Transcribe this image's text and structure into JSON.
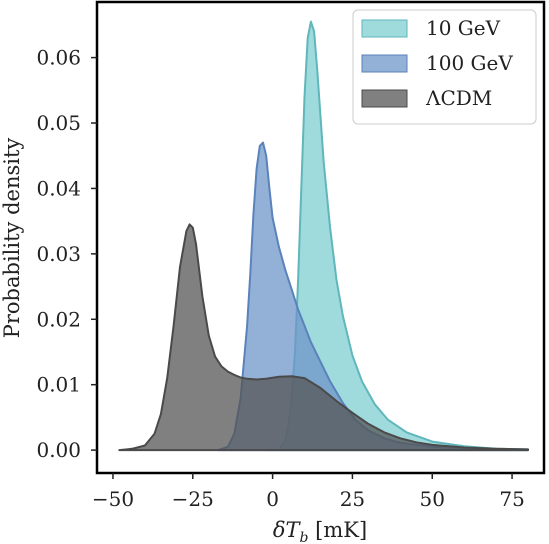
{
  "chart_data": {
    "type": "area",
    "title": "",
    "xlabel": "δT_b [mK]",
    "ylabel": "Probability density",
    "xlim": [
      -55,
      85
    ],
    "ylim": [
      -0.0035,
      0.0685
    ],
    "xticks": [
      -50,
      -25,
      0,
      25,
      50,
      75
    ],
    "xtick_labels": [
      "−50",
      "−25",
      "0",
      "25",
      "50",
      "75"
    ],
    "yticks": [
      0.0,
      0.01,
      0.02,
      0.03,
      0.04,
      0.05,
      0.06
    ],
    "ytick_labels": [
      "0.00",
      "0.01",
      "0.02",
      "0.03",
      "0.04",
      "0.05",
      "0.06"
    ],
    "grid": false,
    "legend_position": "top-right",
    "series": [
      {
        "name": "10 GeV",
        "color": "#7fcdd0",
        "edge": "#5fb6bb",
        "alpha": 0.75,
        "x": [
          -2,
          2,
          4,
          5,
          6,
          7,
          8,
          9,
          10,
          11,
          12,
          13,
          14,
          15,
          16,
          18,
          20,
          22,
          25,
          28,
          32,
          36,
          42,
          50,
          60,
          70,
          80
        ],
        "y": [
          0.0,
          0.0,
          0.0015,
          0.004,
          0.008,
          0.015,
          0.026,
          0.04,
          0.054,
          0.063,
          0.0655,
          0.064,
          0.058,
          0.051,
          0.044,
          0.034,
          0.026,
          0.0205,
          0.0145,
          0.0105,
          0.007,
          0.0047,
          0.0027,
          0.0013,
          0.0006,
          0.0002,
          0.0001
        ]
      },
      {
        "name": "100 GeV",
        "color": "#6f95c9",
        "edge": "#5a82bb",
        "alpha": 0.75,
        "x": [
          -17,
          -14,
          -12,
          -10,
          -8,
          -7,
          -6,
          -5,
          -4,
          -3,
          -2,
          -1,
          0,
          2,
          4,
          6,
          8,
          10,
          12,
          15,
          18,
          22,
          26,
          30,
          35,
          40,
          50,
          60,
          70,
          80
        ],
        "y": [
          0.0,
          0.0005,
          0.0025,
          0.008,
          0.019,
          0.027,
          0.036,
          0.043,
          0.0465,
          0.047,
          0.045,
          0.04,
          0.0355,
          0.031,
          0.0275,
          0.0245,
          0.0215,
          0.019,
          0.0165,
          0.0135,
          0.0105,
          0.0072,
          0.0046,
          0.003,
          0.0018,
          0.0011,
          0.0005,
          0.0002,
          0.0001,
          0.0
        ]
      },
      {
        "name": "ΛCDM",
        "color": "#555555",
        "edge": "#4a4a4a",
        "alpha": 0.75,
        "x": [
          -48,
          -44,
          -40,
          -37,
          -35,
          -33,
          -31,
          -29,
          -27,
          -26,
          -25,
          -24,
          -23,
          -22,
          -20,
          -18,
          -16,
          -14,
          -12,
          -10,
          -8,
          -5,
          -2,
          2,
          6,
          10,
          15,
          20,
          25,
          30,
          35,
          40,
          45,
          50,
          60,
          70,
          80
        ],
        "y": [
          0.0,
          0.0002,
          0.0007,
          0.0025,
          0.0055,
          0.011,
          0.019,
          0.028,
          0.0335,
          0.0345,
          0.034,
          0.0315,
          0.0275,
          0.0235,
          0.0175,
          0.0143,
          0.0128,
          0.012,
          0.0115,
          0.0111,
          0.0109,
          0.0108,
          0.0109,
          0.0112,
          0.0113,
          0.011,
          0.0095,
          0.0075,
          0.0057,
          0.004,
          0.0027,
          0.0018,
          0.0012,
          0.0008,
          0.0004,
          0.0002,
          0.0001
        ]
      }
    ]
  }
}
